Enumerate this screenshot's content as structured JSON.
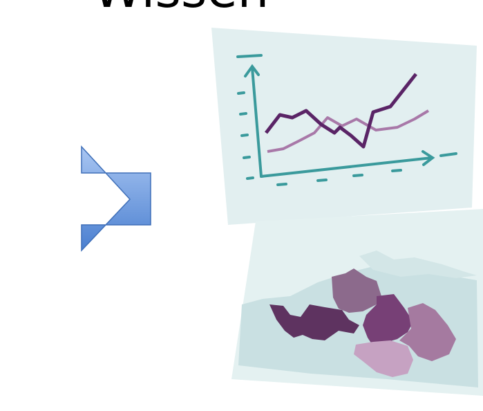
{
  "title": "Wissen"
}
